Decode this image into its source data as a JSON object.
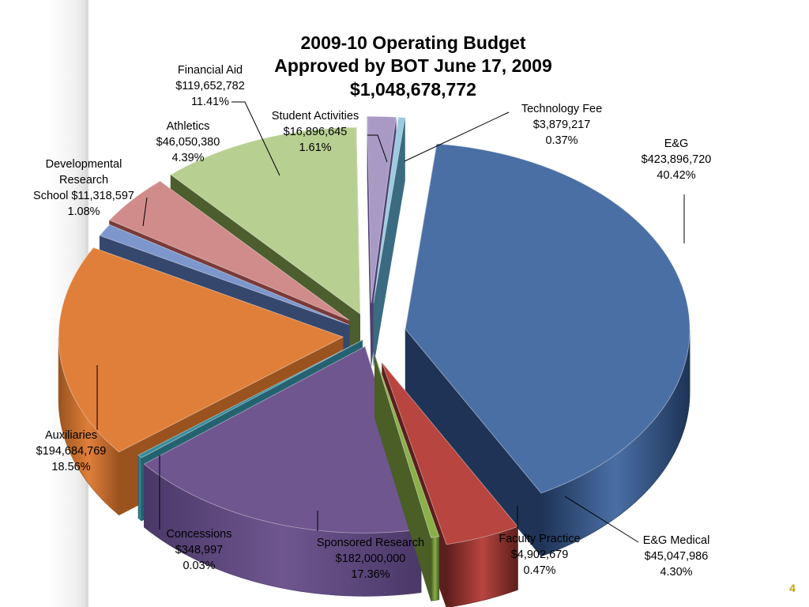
{
  "chart_data": {
    "type": "pie",
    "variant": "3d-exploded",
    "title_lines": [
      "2009-10 Operating Budget",
      "Approved by BOT June 17, 2009",
      "$1,048,678,772"
    ],
    "total": 1048678772,
    "slices": [
      {
        "key": "eg",
        "label_lines": [
          "E&G",
          "$423,896,720",
          "40.42%"
        ],
        "value": 423896720,
        "percent": 40.42,
        "color": "#4a6fa5",
        "side_color": "#1e3356"
      },
      {
        "key": "eg_medical",
        "label_lines": [
          "E&G Medical",
          "$45,047,986",
          "4.30%"
        ],
        "value": 45047986,
        "percent": 4.3,
        "color": "#b8453f",
        "side_color": "#5c1f1c"
      },
      {
        "key": "faculty",
        "label_lines": [
          "Faculty Practice",
          "$4,902,679",
          "0.47%"
        ],
        "value": 4902679,
        "percent": 0.47,
        "color": "#8ab04a",
        "side_color": "#4a5e26"
      },
      {
        "key": "sponsored",
        "label_lines": [
          "Sponsored Research",
          "$182,000,000",
          "17.36%"
        ],
        "value": 182000000,
        "percent": 17.36,
        "color": "#6f568f",
        "side_color": "#4a3868"
      },
      {
        "key": "concessions",
        "label_lines": [
          "Concessions",
          "$348,997",
          "0.03%"
        ],
        "value": 348997,
        "percent": 0.03,
        "color": "#3c8c9a",
        "side_color": "#246271"
      },
      {
        "key": "auxiliaries",
        "label_lines": [
          "Auxiliaries",
          "$194,684,769",
          "18.56%"
        ],
        "value": 194684769,
        "percent": 18.56,
        "color": "#e07f3a",
        "side_color": "#9a531f"
      },
      {
        "key": "dev_research",
        "label_lines": [
          "Developmental",
          "Research",
          "School $11,318,597",
          "1.08%"
        ],
        "value": 11318597,
        "percent": 1.08,
        "color": "#7d97cc",
        "side_color": "#35476d"
      },
      {
        "key": "athletics",
        "label_lines": [
          "Athletics",
          "$46,050,380",
          "4.39%"
        ],
        "value": 46050380,
        "percent": 4.39,
        "color": "#d08c8a",
        "side_color": "#7a3a38"
      },
      {
        "key": "fin_aid",
        "label_lines": [
          "Financial Aid",
          "$119,652,782",
          "11.41%"
        ],
        "value": 119652782,
        "percent": 11.41,
        "color": "#b8cf92",
        "side_color": "#4d5e2e"
      },
      {
        "key": "student_act",
        "label_lines": [
          "Student Activities",
          "$16,896,645",
          "1.61%"
        ],
        "value": 16896645,
        "percent": 1.61,
        "color": "#a89ac5",
        "side_color": "#4e4170"
      },
      {
        "key": "tech_fee",
        "label_lines": [
          "Technology Fee",
          "$3,879,217",
          "0.37%"
        ],
        "value": 3879217,
        "percent": 0.37,
        "color": "#9bcbe0",
        "side_color": "#3b6b80"
      }
    ]
  },
  "slide": {
    "page_number": "4"
  }
}
